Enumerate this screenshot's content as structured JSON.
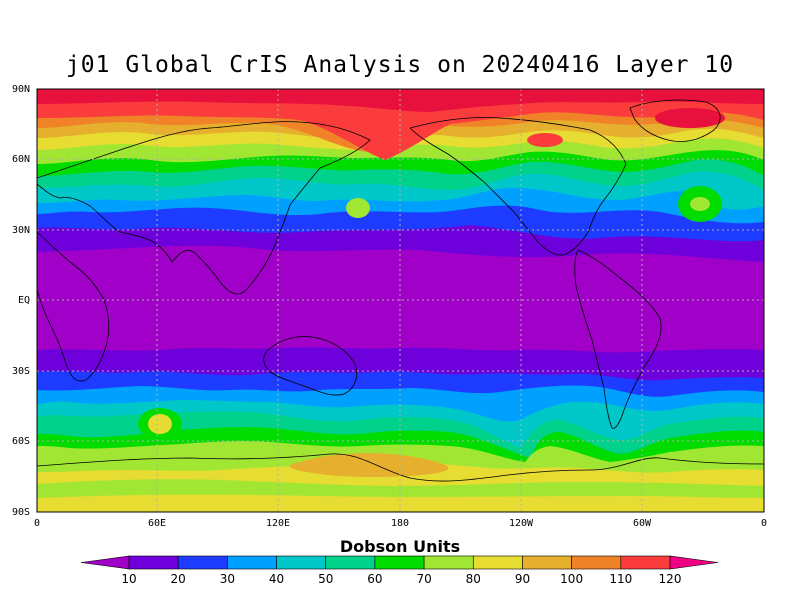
{
  "title": "j01 Global CrIS Analysis on 20240416 Layer 10",
  "lat_labels": [
    "90N",
    "60N",
    "30N",
    "EQ",
    "30S",
    "60S",
    "90S"
  ],
  "lon_labels": [
    "0",
    "60E",
    "120E",
    "180",
    "120W",
    "60W",
    "0"
  ],
  "colorbar": {
    "title": "Dobson Units",
    "ticks": [
      "10",
      "20",
      "30",
      "40",
      "50",
      "60",
      "70",
      "80",
      "90",
      "100",
      "110",
      "120"
    ],
    "colors": [
      "#a000c8",
      "#6e00dc",
      "#1e3cff",
      "#00a0ff",
      "#00c8c8",
      "#00d28c",
      "#00dc00",
      "#a0e632",
      "#e6dc32",
      "#e6af2d",
      "#f08228",
      "#fa3c3c",
      "#f00082"
    ]
  },
  "map": {
    "units": "Dobson Units",
    "bands": [
      {
        "lat_from": 90,
        "lat_to": 75,
        "value": "120+"
      },
      {
        "lat_from": 75,
        "lat_to": 62,
        "value": "100-110"
      },
      {
        "lat_from": 62,
        "lat_to": 48,
        "value": "80-90"
      },
      {
        "lat_from": 48,
        "lat_to": 38,
        "value": "60-70"
      },
      {
        "lat_from": 38,
        "lat_to": 30,
        "value": "40-50"
      },
      {
        "lat_from": 30,
        "lat_to": 22,
        "value": "20-30"
      },
      {
        "lat_from": 22,
        "lat_to": -25,
        "value": "10-20"
      },
      {
        "lat_from": -25,
        "lat_to": -35,
        "value": "20-30"
      },
      {
        "lat_from": -35,
        "lat_to": -45,
        "value": "30-50"
      },
      {
        "lat_from": -45,
        "lat_to": -58,
        "value": "50-70"
      },
      {
        "lat_from": -58,
        "lat_to": -75,
        "value": "70-90"
      },
      {
        "lat_from": -75,
        "lat_to": -90,
        "value": "80-90"
      }
    ]
  }
}
